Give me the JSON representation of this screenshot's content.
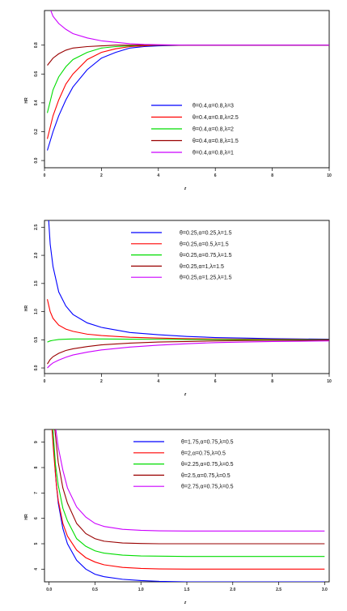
{
  "chart_data": [
    {
      "type": "line",
      "xlabel": "z",
      "ylabel": "HR",
      "xlim": [
        0,
        10
      ],
      "ylim": [
        -0.05,
        1.04
      ],
      "xticks": [
        0,
        2,
        4,
        6,
        8,
        10
      ],
      "yticks": [
        0.0,
        0.2,
        0.4,
        0.6,
        0.8
      ],
      "xtick_labels": [
        "0",
        "2",
        "4",
        "6",
        "8",
        "10"
      ],
      "ytick_labels": [
        "0.0",
        "0.2",
        "0.4",
        "0.6",
        "0.8"
      ],
      "legend_position": "bottom-right",
      "series": [
        {
          "name": "θ=0.4,α=0.8,λ=3",
          "color": "#0000ff",
          "x": [
            0.1,
            0.3,
            0.5,
            0.75,
            1,
            1.5,
            2,
            2.5,
            3,
            3.5,
            4,
            5,
            6,
            7,
            8,
            9,
            10
          ],
          "y": [
            0.07,
            0.2,
            0.31,
            0.42,
            0.51,
            0.63,
            0.71,
            0.75,
            0.78,
            0.79,
            0.795,
            0.8,
            0.8,
            0.8,
            0.8,
            0.8,
            0.8
          ]
        },
        {
          "name": "θ=0.4,α=0.8,λ=2.5",
          "color": "#ff0000",
          "x": [
            0.1,
            0.3,
            0.5,
            0.75,
            1,
            1.5,
            2,
            2.5,
            3,
            3.5,
            4,
            5,
            6,
            7,
            8,
            9,
            10
          ],
          "y": [
            0.15,
            0.31,
            0.42,
            0.53,
            0.6,
            0.7,
            0.75,
            0.775,
            0.79,
            0.795,
            0.8,
            0.8,
            0.8,
            0.8,
            0.8,
            0.8,
            0.8
          ]
        },
        {
          "name": "θ=0.4,α=0.8,λ=2",
          "color": "#00dd00",
          "x": [
            0.1,
            0.3,
            0.5,
            0.75,
            1,
            1.5,
            2,
            2.5,
            3,
            3.5,
            4,
            5,
            6,
            7,
            8,
            9,
            10
          ],
          "y": [
            0.33,
            0.49,
            0.58,
            0.65,
            0.7,
            0.75,
            0.78,
            0.79,
            0.795,
            0.8,
            0.8,
            0.8,
            0.8,
            0.8,
            0.8,
            0.8,
            0.8
          ]
        },
        {
          "name": "θ=0.4,α=0.8,λ=1.5",
          "color": "#990000",
          "x": [
            0.1,
            0.3,
            0.5,
            0.75,
            1,
            1.5,
            2,
            2.5,
            3,
            3.5,
            4,
            5,
            6,
            7,
            8,
            9,
            10
          ],
          "y": [
            0.66,
            0.71,
            0.74,
            0.765,
            0.78,
            0.79,
            0.795,
            0.8,
            0.8,
            0.8,
            0.8,
            0.8,
            0.8,
            0.8,
            0.8,
            0.8,
            0.8
          ]
        },
        {
          "name": "θ=0.4,α=0.8,λ=1",
          "color": "#cc00ff",
          "x": [
            0.1,
            0.3,
            0.5,
            0.75,
            1,
            1.5,
            2,
            2.5,
            3,
            3.5,
            4,
            5,
            6,
            7,
            8,
            9,
            10
          ],
          "y": [
            1.1,
            1.0,
            0.95,
            0.91,
            0.88,
            0.85,
            0.83,
            0.82,
            0.81,
            0.805,
            0.803,
            0.8,
            0.8,
            0.8,
            0.8,
            0.8,
            0.8
          ]
        }
      ]
    },
    {
      "type": "line",
      "xlabel": "z",
      "ylabel": "HR",
      "xlim": [
        0,
        10
      ],
      "ylim": [
        -0.1,
        2.62
      ],
      "xticks": [
        0,
        2,
        4,
        6,
        8,
        10
      ],
      "yticks": [
        0.0,
        0.5,
        1.0,
        1.5,
        2.0,
        2.5
      ],
      "xtick_labels": [
        "0",
        "2",
        "4",
        "6",
        "8",
        "10"
      ],
      "ytick_labels": [
        "0.0",
        "0.5",
        "1.0",
        "1.5",
        "2.0",
        "2.5"
      ],
      "legend_position": "top-center",
      "series": [
        {
          "name": "θ=0.25,α=0.25,λ=1.5",
          "color": "#0000ff",
          "x": [
            0.1,
            0.2,
            0.3,
            0.5,
            0.75,
            1,
            1.5,
            2,
            3,
            4,
            5,
            6,
            7,
            8,
            9,
            10
          ],
          "y": [
            3.0,
            2.2,
            1.8,
            1.35,
            1.1,
            0.95,
            0.8,
            0.72,
            0.63,
            0.59,
            0.56,
            0.54,
            0.53,
            0.52,
            0.515,
            0.51
          ]
        },
        {
          "name": "θ=0.25,α=0.5,λ=1.5",
          "color": "#ff0000",
          "x": [
            0.1,
            0.2,
            0.3,
            0.5,
            0.75,
            1,
            1.5,
            2,
            3,
            4,
            5,
            6,
            7,
            8,
            9,
            10
          ],
          "y": [
            1.22,
            1.0,
            0.88,
            0.76,
            0.69,
            0.65,
            0.6,
            0.575,
            0.545,
            0.53,
            0.52,
            0.515,
            0.51,
            0.508,
            0.505,
            0.503
          ]
        },
        {
          "name": "θ=0.25,α=0.75,λ=1.5",
          "color": "#00dd00",
          "x": [
            0.1,
            0.2,
            0.3,
            0.5,
            0.75,
            1,
            1.5,
            2,
            3,
            4,
            5,
            6,
            7,
            8,
            9,
            10
          ],
          "y": [
            0.46,
            0.48,
            0.49,
            0.505,
            0.51,
            0.515,
            0.515,
            0.515,
            0.51,
            0.508,
            0.505,
            0.503,
            0.502,
            0.501,
            0.5,
            0.5
          ]
        },
        {
          "name": "θ=0.25,α=1,λ=1.5",
          "color": "#990000",
          "x": [
            0.1,
            0.2,
            0.3,
            0.5,
            0.75,
            1,
            1.5,
            2,
            3,
            4,
            5,
            6,
            7,
            8,
            9,
            10
          ],
          "y": [
            0.07,
            0.15,
            0.2,
            0.26,
            0.31,
            0.34,
            0.38,
            0.41,
            0.44,
            0.46,
            0.47,
            0.48,
            0.485,
            0.49,
            0.49,
            0.495
          ]
        },
        {
          "name": "θ=0.25,α=1.25,λ=1.5",
          "color": "#cc00ff",
          "x": [
            0.1,
            0.2,
            0.3,
            0.5,
            0.75,
            1,
            1.5,
            2,
            3,
            4,
            5,
            6,
            7,
            8,
            9,
            10
          ],
          "y": [
            0.0,
            0.05,
            0.09,
            0.14,
            0.19,
            0.23,
            0.28,
            0.32,
            0.37,
            0.405,
            0.43,
            0.45,
            0.46,
            0.47,
            0.475,
            0.48
          ]
        }
      ]
    },
    {
      "type": "line",
      "xlabel": "z",
      "ylabel": "HR",
      "xlim": [
        -0.05,
        3.05
      ],
      "ylim": [
        3.5,
        9.5
      ],
      "xticks": [
        0.0,
        0.5,
        1.0,
        1.5,
        2.0,
        2.5,
        3.0
      ],
      "yticks": [
        4,
        5,
        6,
        7,
        8,
        9
      ],
      "xtick_labels": [
        "0.0",
        "0.5",
        "1.0",
        "1.5",
        "2.0",
        "2.5",
        "3.0"
      ],
      "ytick_labels": [
        "4",
        "5",
        "6",
        "7",
        "8",
        "9"
      ],
      "legend_position": "top-center",
      "series": [
        {
          "name": "θ=1.75,α=0.75,λ=0.5",
          "color": "#0000ff",
          "x": [
            0.04,
            0.07,
            0.1,
            0.15,
            0.2,
            0.3,
            0.4,
            0.5,
            0.6,
            0.8,
            1,
            1.2,
            1.5,
            2,
            2.5,
            3
          ],
          "y": [
            9.6,
            7.7,
            6.6,
            5.6,
            5.0,
            4.35,
            4.0,
            3.8,
            3.7,
            3.6,
            3.55,
            3.52,
            3.5,
            3.5,
            3.5,
            3.5
          ]
        },
        {
          "name": "θ=2,α=0.75,λ=0.5",
          "color": "#ff0000",
          "x": [
            0.03,
            0.05,
            0.08,
            0.1,
            0.15,
            0.2,
            0.3,
            0.4,
            0.5,
            0.6,
            0.8,
            1,
            1.2,
            1.5,
            2,
            2.5,
            3
          ],
          "y": [
            9.6,
            8.6,
            7.3,
            6.7,
            5.8,
            5.3,
            4.75,
            4.45,
            4.28,
            4.17,
            4.07,
            4.03,
            4.01,
            4.0,
            4.0,
            4.0,
            4.0
          ]
        },
        {
          "name": "θ=2.25,α=0.75,λ=0.5",
          "color": "#00dd00",
          "x": [
            0.04,
            0.07,
            0.1,
            0.15,
            0.2,
            0.3,
            0.4,
            0.5,
            0.6,
            0.8,
            1,
            1.2,
            1.5,
            2,
            2.5,
            3
          ],
          "y": [
            9.6,
            8.1,
            7.3,
            6.4,
            5.9,
            5.2,
            4.9,
            4.72,
            4.63,
            4.55,
            4.52,
            4.51,
            4.5,
            4.5,
            4.5,
            4.5
          ]
        },
        {
          "name": "θ=2.5,α=0.75,λ=0.5",
          "color": "#990000",
          "x": [
            0.06,
            0.08,
            0.1,
            0.15,
            0.2,
            0.3,
            0.4,
            0.5,
            0.6,
            0.8,
            1,
            1.2,
            1.5,
            2,
            2.5,
            3
          ],
          "y": [
            9.6,
            8.9,
            8.2,
            7.2,
            6.6,
            5.8,
            5.4,
            5.2,
            5.1,
            5.03,
            5.01,
            5.0,
            5.0,
            5.0,
            5.0,
            5.0
          ]
        },
        {
          "name": "θ=2.75,α=0.75,λ=0.5",
          "color": "#cc00ff",
          "x": [
            0.07,
            0.1,
            0.15,
            0.2,
            0.3,
            0.4,
            0.5,
            0.6,
            0.8,
            1,
            1.2,
            1.5,
            2,
            2.5,
            3
          ],
          "y": [
            9.6,
            8.8,
            7.9,
            7.2,
            6.45,
            6.05,
            5.8,
            5.68,
            5.57,
            5.53,
            5.51,
            5.5,
            5.5,
            5.5,
            5.5
          ]
        }
      ]
    }
  ]
}
